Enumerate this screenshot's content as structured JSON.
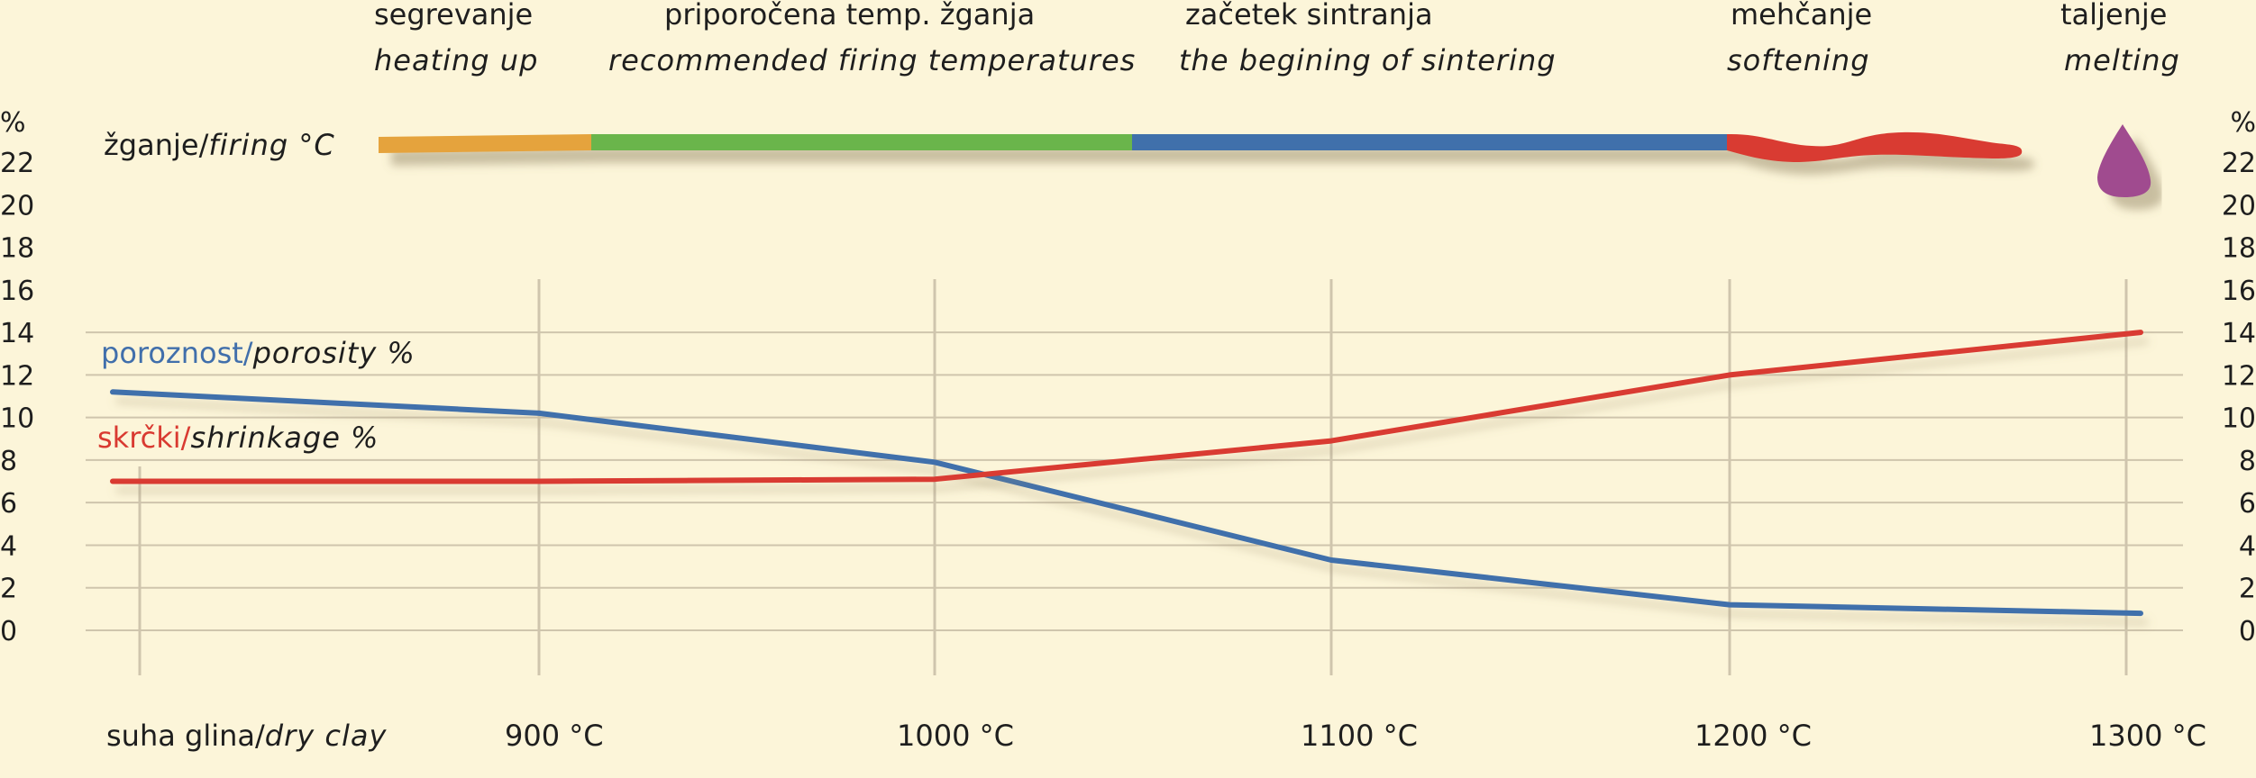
{
  "stages": [
    {
      "sl": "segrevanje",
      "en": "heating up"
    },
    {
      "sl": "priporočena temp. žganja",
      "en": "recommended firing temperatures"
    },
    {
      "sl": "začetek sintranja",
      "en": "the begining of sintering"
    },
    {
      "sl": "mehčanje",
      "en": "softening"
    },
    {
      "sl": "taljenje",
      "en": "melting"
    }
  ],
  "firing_label": {
    "sl": "žganje/",
    "en": "firing °C"
  },
  "colors": {
    "background": "#fcf5d9",
    "grid": "#cfc5ad",
    "porosity": "#416fab",
    "shrinkage": "#d93a31",
    "heating": "#e5a33c",
    "recommended": "#6ab54c",
    "sintering": "#416fab",
    "softening": "#d93a31",
    "melting": "#a04b8f"
  },
  "chart_data": {
    "type": "line",
    "x_categories": [
      "suha glina/dry clay",
      "900 °C",
      "1000 °C",
      "1100 °C",
      "1200 °C",
      "1300 °C"
    ],
    "x_labels": [
      {
        "main": "suha glina/",
        "italic": "dry clay"
      },
      {
        "main": "900 °C",
        "italic": ""
      },
      {
        "main": "1000 °C",
        "italic": ""
      },
      {
        "main": "1100 °C",
        "italic": ""
      },
      {
        "main": "1200 °C",
        "italic": ""
      },
      {
        "main": "1300 °C",
        "italic": ""
      }
    ],
    "y_unit": "%",
    "y_ticks": [
      0,
      2,
      4,
      6,
      8,
      10,
      12,
      14,
      16,
      18,
      20,
      22
    ],
    "ylim": [
      0,
      22
    ],
    "series": [
      {
        "name": "poroznost/porosity %",
        "name_sl": "poroznost/",
        "name_en": "porosity %",
        "values": [
          11.2,
          10.2,
          7.9,
          3.3,
          1.2,
          0.8
        ]
      },
      {
        "name": "skrčki/shrinkage %",
        "name_sl": "skrčki/",
        "name_en": "shrinkage %",
        "values": [
          7.0,
          7.0,
          7.1,
          8.9,
          12.0,
          14.0
        ]
      }
    ]
  }
}
